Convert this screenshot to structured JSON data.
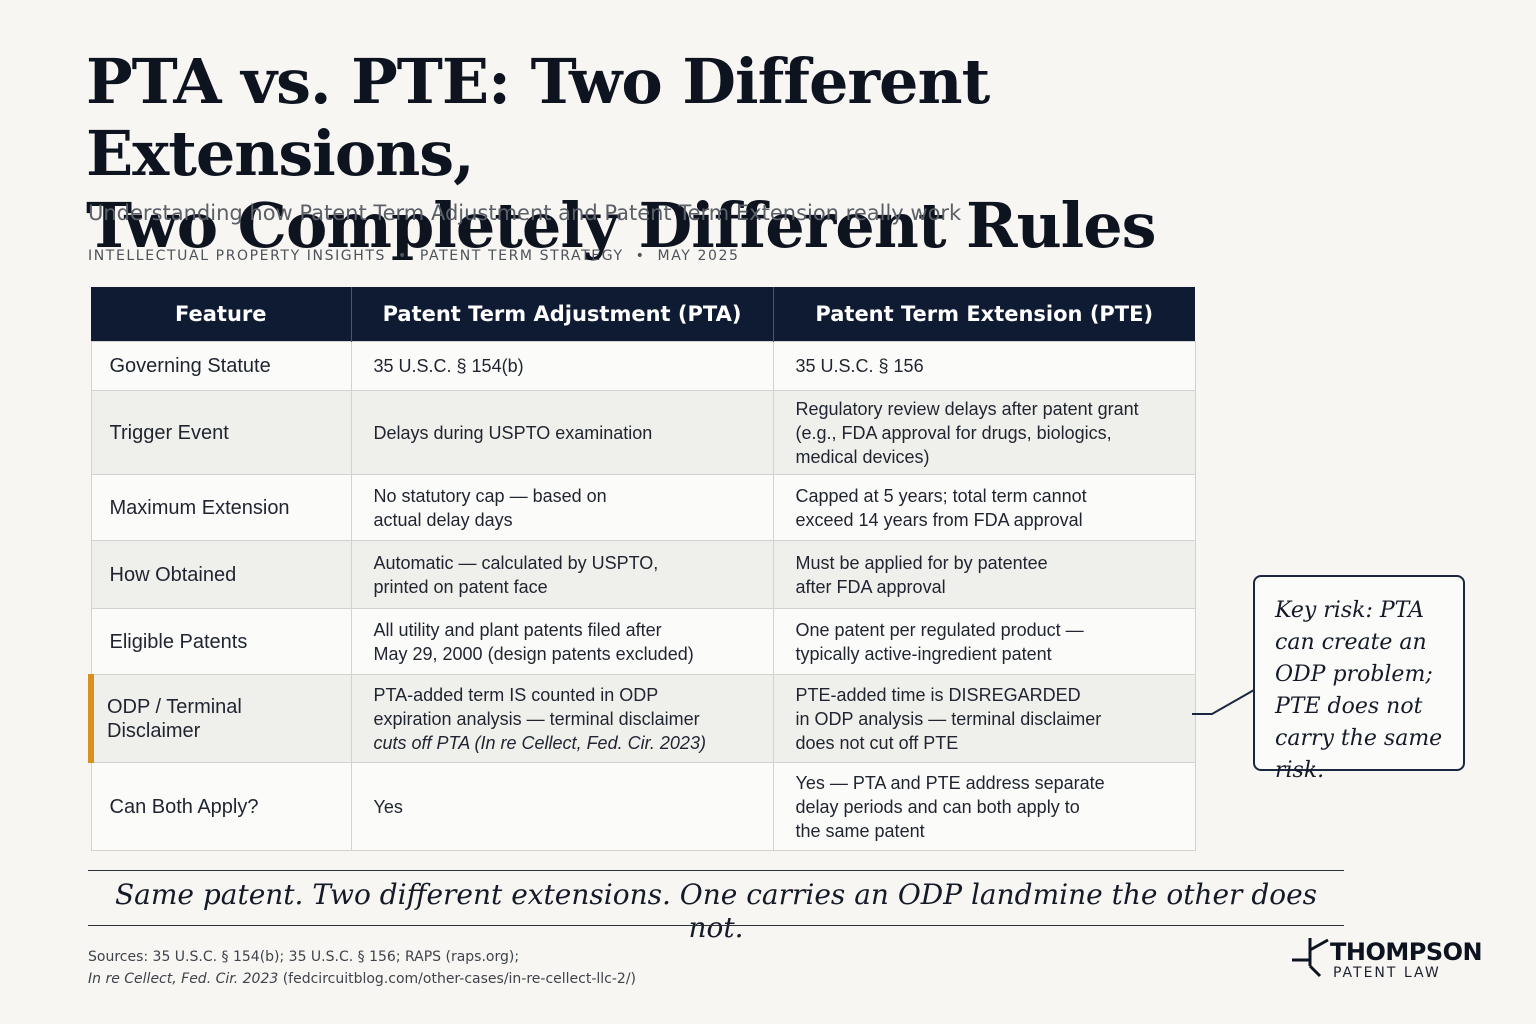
{
  "title": {
    "line1": "PTA vs. PTE: Two Different Extensions,",
    "line2": "Two Completely Different Rules"
  },
  "subtitle": "Understanding how Patent Term Adjustment and Patent Term Extension really work",
  "meta": {
    "category": "INTELLECTUAL PROPERTY INSIGHTS",
    "topic": "PATENT TERM STRATEGY",
    "date": "MAY 2025",
    "separator": "•"
  },
  "table": {
    "headers": [
      "Feature",
      "Patent Term Adjustment (PTA)",
      "Patent Term Extension (PTE)"
    ],
    "rows": [
      {
        "feature": "Governing Statute",
        "pta": [
          "35 U.S.C. § 154(b)"
        ],
        "pte": [
          "35 U.S.C. § 156"
        ]
      },
      {
        "feature": "Trigger Event",
        "pta": [
          "Delays during USPTO examination"
        ],
        "pte": [
          "Regulatory review delays after patent grant",
          "(e.g., FDA approval for drugs, biologics,",
          "medical devices)"
        ]
      },
      {
        "feature": "Maximum Extension",
        "pta": [
          "No statutory cap — based on",
          "actual delay days"
        ],
        "pte": [
          "Capped at 5 years; total term cannot",
          "exceed 14 years from FDA approval"
        ]
      },
      {
        "feature": "How Obtained",
        "pta": [
          "Automatic — calculated by USPTO,",
          "printed on patent face"
        ],
        "pte": [
          "Must be applied for by patentee",
          "after FDA approval"
        ]
      },
      {
        "feature": "Eligible Patents",
        "pta": [
          "All utility and plant patents filed after",
          "May 29, 2000 (design patents excluded)"
        ],
        "pte": [
          "One patent per regulated product —",
          "typically active-ingredient patent"
        ]
      },
      {
        "feature": "ODP / Terminal Disclaimer",
        "pta": [
          "PTA-added term IS counted in ODP",
          "expiration analysis — terminal disclaimer"
        ],
        "pta_italic": "cuts off PTA (In re Cellect, Fed. Cir. 2023)",
        "pte": [
          "PTE-added time is DISREGARDED",
          "in ODP analysis — terminal disclaimer",
          "does not cut off PTE"
        ]
      },
      {
        "feature": "Can Both Apply?",
        "pta": [
          "Yes"
        ],
        "pte": [
          "Yes — PTA and PTE address separate",
          "delay periods and can both apply to",
          "the same patent"
        ]
      }
    ]
  },
  "callout": "Key risk: PTA can create an ODP problem; PTE does not carry the same risk.",
  "tagline": "Same patent. Two different extensions. One carries an ODP landmine the other does not.",
  "sources": {
    "line1": "Sources: 35 U.S.C. § 154(b); 35 U.S.C. § 156; RAPS (raps.org);",
    "line2_italic": "In re Cellect, Fed. Cir. 2023",
    "line2_rest": " (fedcircuitblog.com/other-cases/in-re-cellect-llc-2/)"
  },
  "logo": {
    "name": "THOMPSON",
    "sub": "PATENT LAW"
  },
  "colors": {
    "header_bg": "#0f1a33",
    "highlight_accent": "#d9901e",
    "background": "#f7f6f2"
  }
}
